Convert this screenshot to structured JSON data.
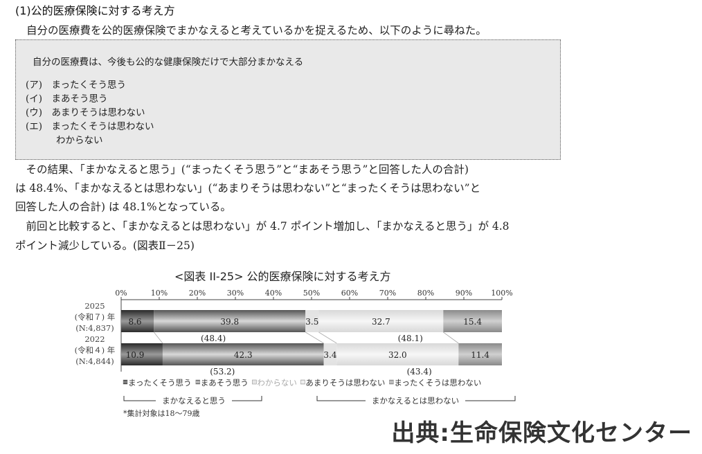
{
  "heading": "(1)公的医療保険に対する考え方",
  "intro": "自分の医療費を公的医療保険でまかなえると考えているかを捉えるため、以下のように尋ねた。",
  "question_box": {
    "question": "自分の医療費は、今後も公的な健康保険だけで大部分まかなえる",
    "options": [
      "(ア)　まったくそう思う",
      "(イ)　まあそう思う",
      "(ウ)　あまりそうは思わない",
      "(エ)　まったくそうは思わない",
      "わからない"
    ]
  },
  "paragraphs": [
    "　その結果、「まかなえると思う」(“まったくそう思う”と“まあそう思う”と回答した人の合計)",
    "は 48.4%、「まかなえるとは思わない」(“あまりそうは思わない”と“まったくそうは思わない”と",
    "回答した人の合計) は 48.1%となっている。",
    "　前回と比較すると、「まかなえるとは思わない」が 4.7 ポイント増加し、「まかなえると思う」が 4.8",
    "ポイント減少している。(図表Ⅱ－25)"
  ],
  "chart_data": {
    "type": "bar",
    "orientation": "horizontal-stacked-100",
    "title": "<図表 II-25> 公的医療保険に対する考え方",
    "xlim": [
      0,
      100
    ],
    "x_ticks": [
      "0%",
      "10%",
      "20%",
      "30%",
      "40%",
      "50%",
      "60%",
      "70%",
      "80%",
      "90%",
      "100%"
    ],
    "categories": [
      [
        "2025",
        "(令和７) 年",
        "(N:4,837)"
      ],
      [
        "2022",
        "(令和４) 年",
        "(N:4,844)"
      ]
    ],
    "series": [
      {
        "name": "まったくそう思う",
        "values": [
          8.6,
          10.9
        ],
        "color": "#2a2a2a"
      },
      {
        "name": "まあそう思う",
        "values": [
          39.8,
          42.3
        ],
        "color": "#555555"
      },
      {
        "name": "わからない",
        "values": [
          3.5,
          3.4
        ],
        "color": "#e2e2e2"
      },
      {
        "name": "あまりそうは思わない",
        "values": [
          32.7,
          32.0
        ],
        "color": "#d8d8d8"
      },
      {
        "name": "まったくそうは思わない",
        "values": [
          15.4,
          11.4
        ],
        "color": "#8a8a8a"
      }
    ],
    "totals": [
      {
        "agree": "(48.4)",
        "disagree": "(48.1)"
      },
      {
        "agree": "(53.2)",
        "disagree": "(43.4)"
      }
    ],
    "group_labels": [
      "まかなえると思う",
      "まかなえるとは思わない"
    ],
    "note": "*集計対象は18～79歳",
    "legend_position": "bottom"
  },
  "source": "出典:生命保険文化センター"
}
